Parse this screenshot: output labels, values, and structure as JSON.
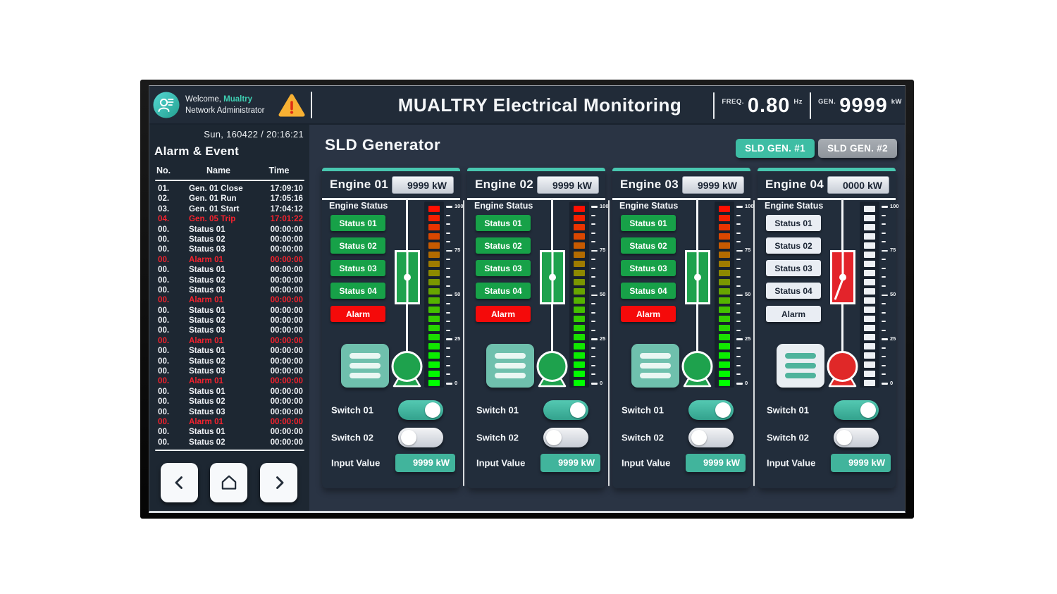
{
  "header": {
    "welcome_prefix": "Welcome,",
    "username": "Mualtry",
    "role": "Network Administrator",
    "title": "MUALTRY Electrical Monitoring",
    "freq": {
      "label": "FREQ.",
      "value": "0.80",
      "unit": "Hz"
    },
    "gen": {
      "label": "GEN.",
      "value": "9999",
      "unit": "kW"
    }
  },
  "sidebar": {
    "datetime": "Sun, 160422 / 20:16:21",
    "heading": "Alarm & Event",
    "columns": {
      "no": "No.",
      "name": "Name",
      "time": "Time"
    },
    "rows": [
      {
        "no": "01.",
        "name": "Gen. 01 Close",
        "time": "17:09:10",
        "alarm": false
      },
      {
        "no": "02.",
        "name": "Gen. 01 Run",
        "time": "17:05:16",
        "alarm": false
      },
      {
        "no": "03.",
        "name": "Gen. 01 Start",
        "time": "17:04:12",
        "alarm": false
      },
      {
        "no": "04.",
        "name": "Gen. 05 Trip",
        "time": "17:01:22",
        "alarm": true
      },
      {
        "no": "00.",
        "name": "Status 01",
        "time": "00:00:00",
        "alarm": false
      },
      {
        "no": "00.",
        "name": "Status 02",
        "time": "00:00:00",
        "alarm": false
      },
      {
        "no": "00.",
        "name": "Status 03",
        "time": "00:00:00",
        "alarm": false
      },
      {
        "no": "00.",
        "name": "Alarm 01",
        "time": "00:00:00",
        "alarm": true
      },
      {
        "no": "00.",
        "name": "Status 01",
        "time": "00:00:00",
        "alarm": false
      },
      {
        "no": "00.",
        "name": "Status 02",
        "time": "00:00:00",
        "alarm": false
      },
      {
        "no": "00.",
        "name": "Status 03",
        "time": "00:00:00",
        "alarm": false
      },
      {
        "no": "00.",
        "name": "Alarm 01",
        "time": "00:00:00",
        "alarm": true
      },
      {
        "no": "00.",
        "name": "Status 01",
        "time": "00:00:00",
        "alarm": false
      },
      {
        "no": "00.",
        "name": "Status 02",
        "time": "00:00:00",
        "alarm": false
      },
      {
        "no": "00.",
        "name": "Status 03",
        "time": "00:00:00",
        "alarm": false
      },
      {
        "no": "00.",
        "name": "Alarm 01",
        "time": "00:00:00",
        "alarm": true
      },
      {
        "no": "00.",
        "name": "Status 01",
        "time": "00:00:00",
        "alarm": false
      },
      {
        "no": "00.",
        "name": "Status 02",
        "time": "00:00:00",
        "alarm": false
      },
      {
        "no": "00.",
        "name": "Status 03",
        "time": "00:00:00",
        "alarm": false
      },
      {
        "no": "00.",
        "name": "Alarm 01",
        "time": "00:00:00",
        "alarm": true
      },
      {
        "no": "00.",
        "name": "Status 01",
        "time": "00:00:00",
        "alarm": false
      },
      {
        "no": "00.",
        "name": "Status 02",
        "time": "00:00:00",
        "alarm": false
      },
      {
        "no": "00.",
        "name": "Status 03",
        "time": "00:00:00",
        "alarm": false
      },
      {
        "no": "00.",
        "name": "Alarm 01",
        "time": "00:00:00",
        "alarm": true
      },
      {
        "no": "00.",
        "name": "Status 01",
        "time": "00:00:00",
        "alarm": false
      },
      {
        "no": "00.",
        "name": "Status 02",
        "time": "00:00:00",
        "alarm": false
      }
    ]
  },
  "main": {
    "title": "SLD Generator",
    "tabs": [
      {
        "label": "SLD GEN. #1",
        "active": true
      },
      {
        "label": "SLD GEN. #2",
        "active": false
      }
    ],
    "meter_scale": [
      "100",
      "75",
      "50",
      "25",
      "0"
    ],
    "engines": [
      {
        "name": "Engine 01",
        "output": "9999 kW",
        "status_heading": "Engine Status",
        "status_buttons": [
          "Status 01",
          "Status 02",
          "Status 03",
          "Status 04"
        ],
        "alarm_label": "Alarm",
        "breaker": "closed",
        "switch1": {
          "label": "Switch 01",
          "on": true
        },
        "switch2": {
          "label": "Switch 02",
          "on": false
        },
        "input": {
          "label": "Input Value",
          "value": "9999 kW"
        }
      },
      {
        "name": "Engine 02",
        "output": "9999 kW",
        "status_heading": "Engine Status",
        "status_buttons": [
          "Status 01",
          "Status 02",
          "Status 03",
          "Status 04"
        ],
        "alarm_label": "Alarm",
        "breaker": "closed",
        "switch1": {
          "label": "Switch 01",
          "on": true
        },
        "switch2": {
          "label": "Switch 02",
          "on": false
        },
        "input": {
          "label": "Input Value",
          "value": "9999 kW"
        }
      },
      {
        "name": "Engine 03",
        "output": "9999 kW",
        "status_heading": "Engine Status",
        "status_buttons": [
          "Status 01",
          "Status 02",
          "Status 03",
          "Status 04"
        ],
        "alarm_label": "Alarm",
        "breaker": "closed",
        "switch1": {
          "label": "Switch 01",
          "on": true
        },
        "switch2": {
          "label": "Switch 02",
          "on": false
        },
        "input": {
          "label": "Input Value",
          "value": "9999 kW"
        }
      },
      {
        "name": "Engine 04",
        "output": "0000 kW",
        "status_heading": "Engine Status",
        "status_buttons": [
          "Status 01",
          "Status 02",
          "Status 03",
          "Status 04"
        ],
        "alarm_label": "Alarm",
        "breaker": "open",
        "switch1": {
          "label": "Switch 01",
          "on": true
        },
        "switch2": {
          "label": "Switch 02",
          "on": false
        },
        "input": {
          "label": "Input Value",
          "value": "9999 kW"
        }
      }
    ]
  },
  "colors": {
    "accent_teal": "#3ebda4",
    "status_green": "#17a148",
    "alarm_red": "#f50a0a",
    "event_red": "#f5222d",
    "breaker_open_red": "#e3242b",
    "header_bg": "#212b38",
    "sidebar_bg": "#1d2732",
    "main_bg": "#2a3444",
    "panel_bg": "#222d3b"
  },
  "icons": [
    "user-profile-icon",
    "warning-triangle-icon",
    "chevron-left-icon",
    "home-icon",
    "chevron-right-icon",
    "list-menu-icon"
  ]
}
